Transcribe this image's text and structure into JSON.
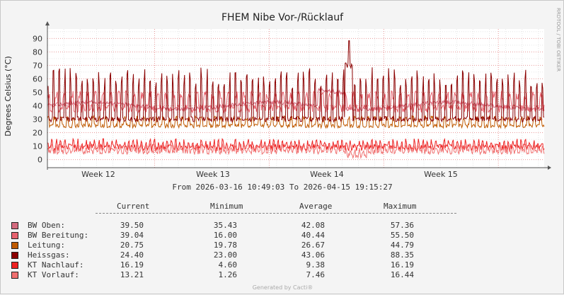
{
  "chart_data": {
    "type": "line",
    "title": "FHEM Nibe Vor-/Rücklauf",
    "ylabel": "Degrees Celsius (°C)",
    "watermark": "RRDTOOL / TOBI OETIKER",
    "ylim": [
      -6,
      97
    ],
    "yticks": [
      "90",
      "80",
      "70",
      "60",
      "50",
      "40",
      "30",
      "20",
      "10",
      "0"
    ],
    "ytick_values": [
      90,
      80,
      70,
      60,
      50,
      40,
      30,
      20,
      10,
      0
    ],
    "xlim_days": [
      0,
      30.35
    ],
    "xticks": [
      {
        "label": "Week 12",
        "day": 4.3
      },
      {
        "label": "Week 13",
        "day": 14.3
      },
      {
        "label": "Week 14",
        "day": 24.3
      },
      {
        "label": "Week 15",
        "day": 34.3
      }
    ],
    "period_text": "From 2026-03-16 10:49:03 To 2026-04-15 19:15:27",
    "legend_headers": {
      "current": "Current",
      "minimum": "Minimum",
      "average": "Average",
      "maximum": "Maximum"
    },
    "series": [
      {
        "name": "BW Oben:",
        "color": "#d46a7e",
        "current": "39.50",
        "minimum": "35.43",
        "average": "42.08",
        "maximum": "57.36",
        "cur": 39.5,
        "min": 35.43,
        "avg": 42.08,
        "max": 57.36
      },
      {
        "name": "BW Bereitung:",
        "color": "#e8636f",
        "current": "39.04",
        "minimum": "16.00",
        "average": "40.44",
        "maximum": "55.50",
        "cur": 39.04,
        "min": 16.0,
        "avg": 40.44,
        "max": 55.5
      },
      {
        "name": "Leitung:",
        "color": "#c05a00",
        "current": "20.75",
        "minimum": "19.78",
        "average": "26.67",
        "maximum": "44.79",
        "cur": 20.75,
        "min": 19.78,
        "avg": 26.67,
        "max": 44.79
      },
      {
        "name": "Heissgas:",
        "color": "#8b0000",
        "current": "24.40",
        "minimum": "23.00",
        "average": "43.06",
        "maximum": "88.35",
        "cur": 24.4,
        "min": 23.0,
        "avg": 43.06,
        "max": 88.35
      },
      {
        "name": "KT Nachlauf:",
        "color": "#ee2222",
        "current": "16.19",
        "minimum": "4.60",
        "average": "9.38",
        "maximum": "16.19",
        "cur": 16.19,
        "min": 4.6,
        "avg": 9.38,
        "max": 16.19
      },
      {
        "name": "KT Vorlauf:",
        "color": "#f07070",
        "current": "13.21",
        "minimum": "1.26",
        "average": "7.46",
        "maximum": "16.44",
        "cur": 13.21,
        "min": 1.26,
        "avg": 7.46,
        "max": 16.44
      }
    ]
  },
  "footer": "Generated by Cacti®"
}
